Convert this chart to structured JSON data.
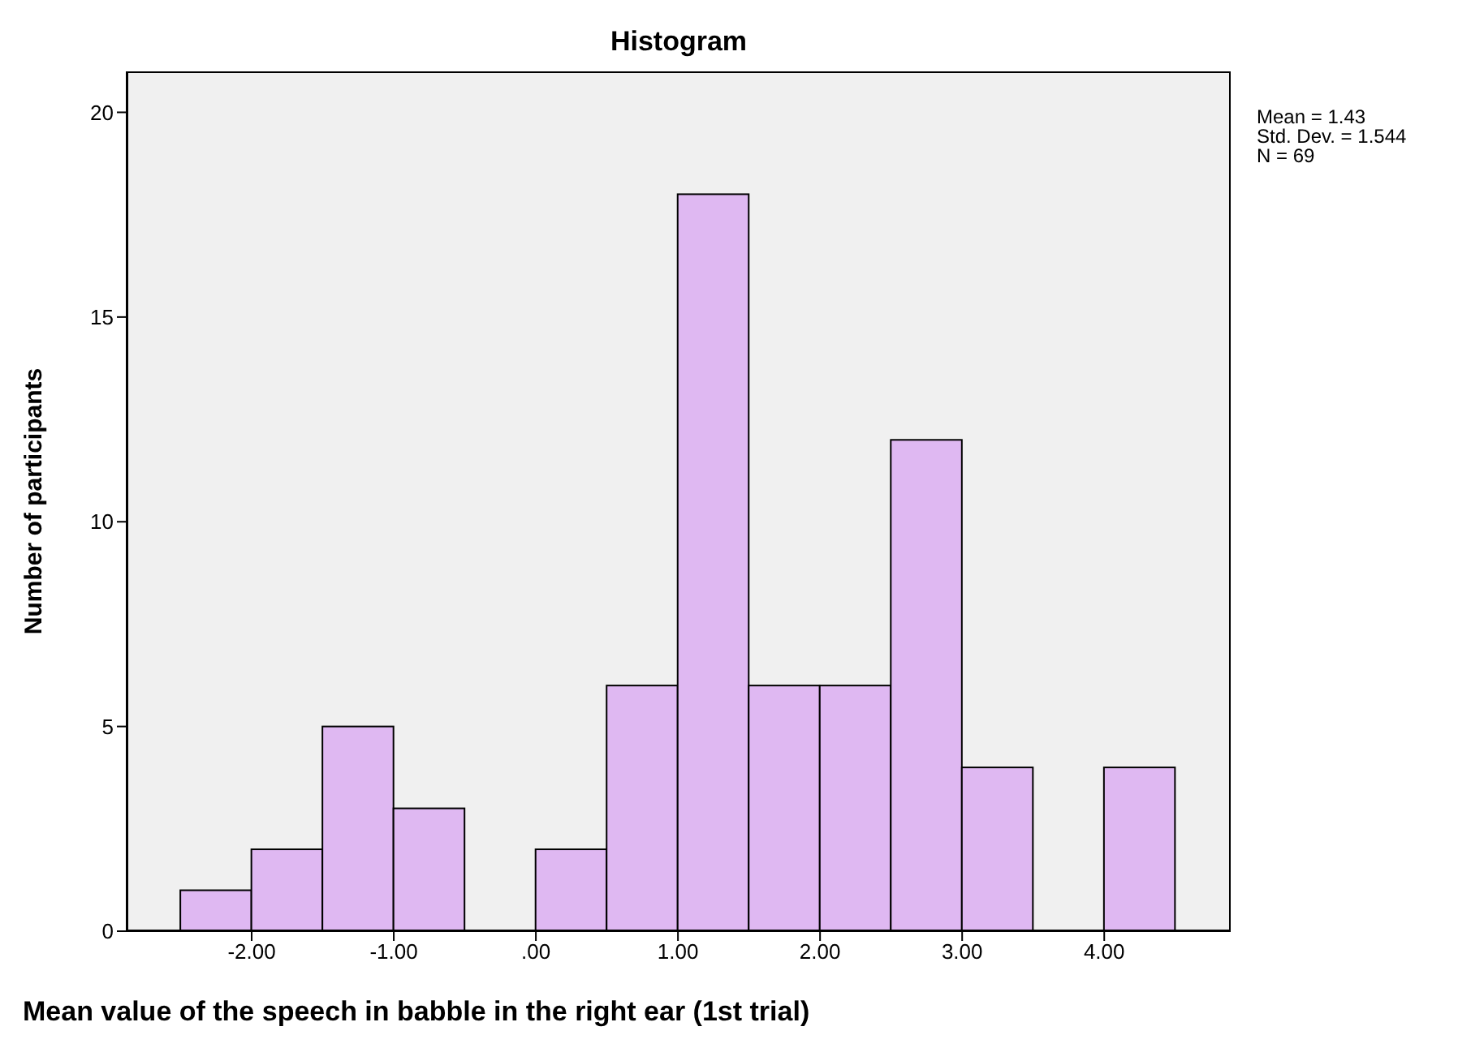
{
  "chart_data": {
    "type": "histogram",
    "title": "Histogram",
    "xlabel": "Mean value of the speech in babble in the right ear (1st trial)",
    "ylabel": "Number of participants",
    "bins": [
      -2.5,
      -2,
      -1.5,
      -1,
      -0.5,
      0,
      0.5,
      1,
      1.5,
      2,
      2.5,
      3,
      3.5,
      4,
      4.5
    ],
    "values": [
      1,
      2,
      5,
      3,
      0,
      2,
      6,
      18,
      6,
      6,
      12,
      4,
      0,
      4
    ],
    "color": "#dfb8f2",
    "xlim": [
      -2.88,
      4.89
    ],
    "xticks": [
      {
        "value": -2,
        "label": "-2.00"
      },
      {
        "value": -1,
        "label": "-1.00"
      },
      {
        "value": 0,
        "label": ".00"
      },
      {
        "value": 1,
        "label": "1.00"
      },
      {
        "value": 2,
        "label": "2.00"
      },
      {
        "value": 3,
        "label": "3.00"
      },
      {
        "value": 4,
        "label": "4.00"
      }
    ],
    "ylim": [
      0,
      21
    ],
    "yticks": [
      0,
      5,
      10,
      15,
      20
    ],
    "annotations": [
      "Mean = 1.43",
      "Std. Dev. = 1.544",
      "N = 69"
    ],
    "grid": false
  }
}
